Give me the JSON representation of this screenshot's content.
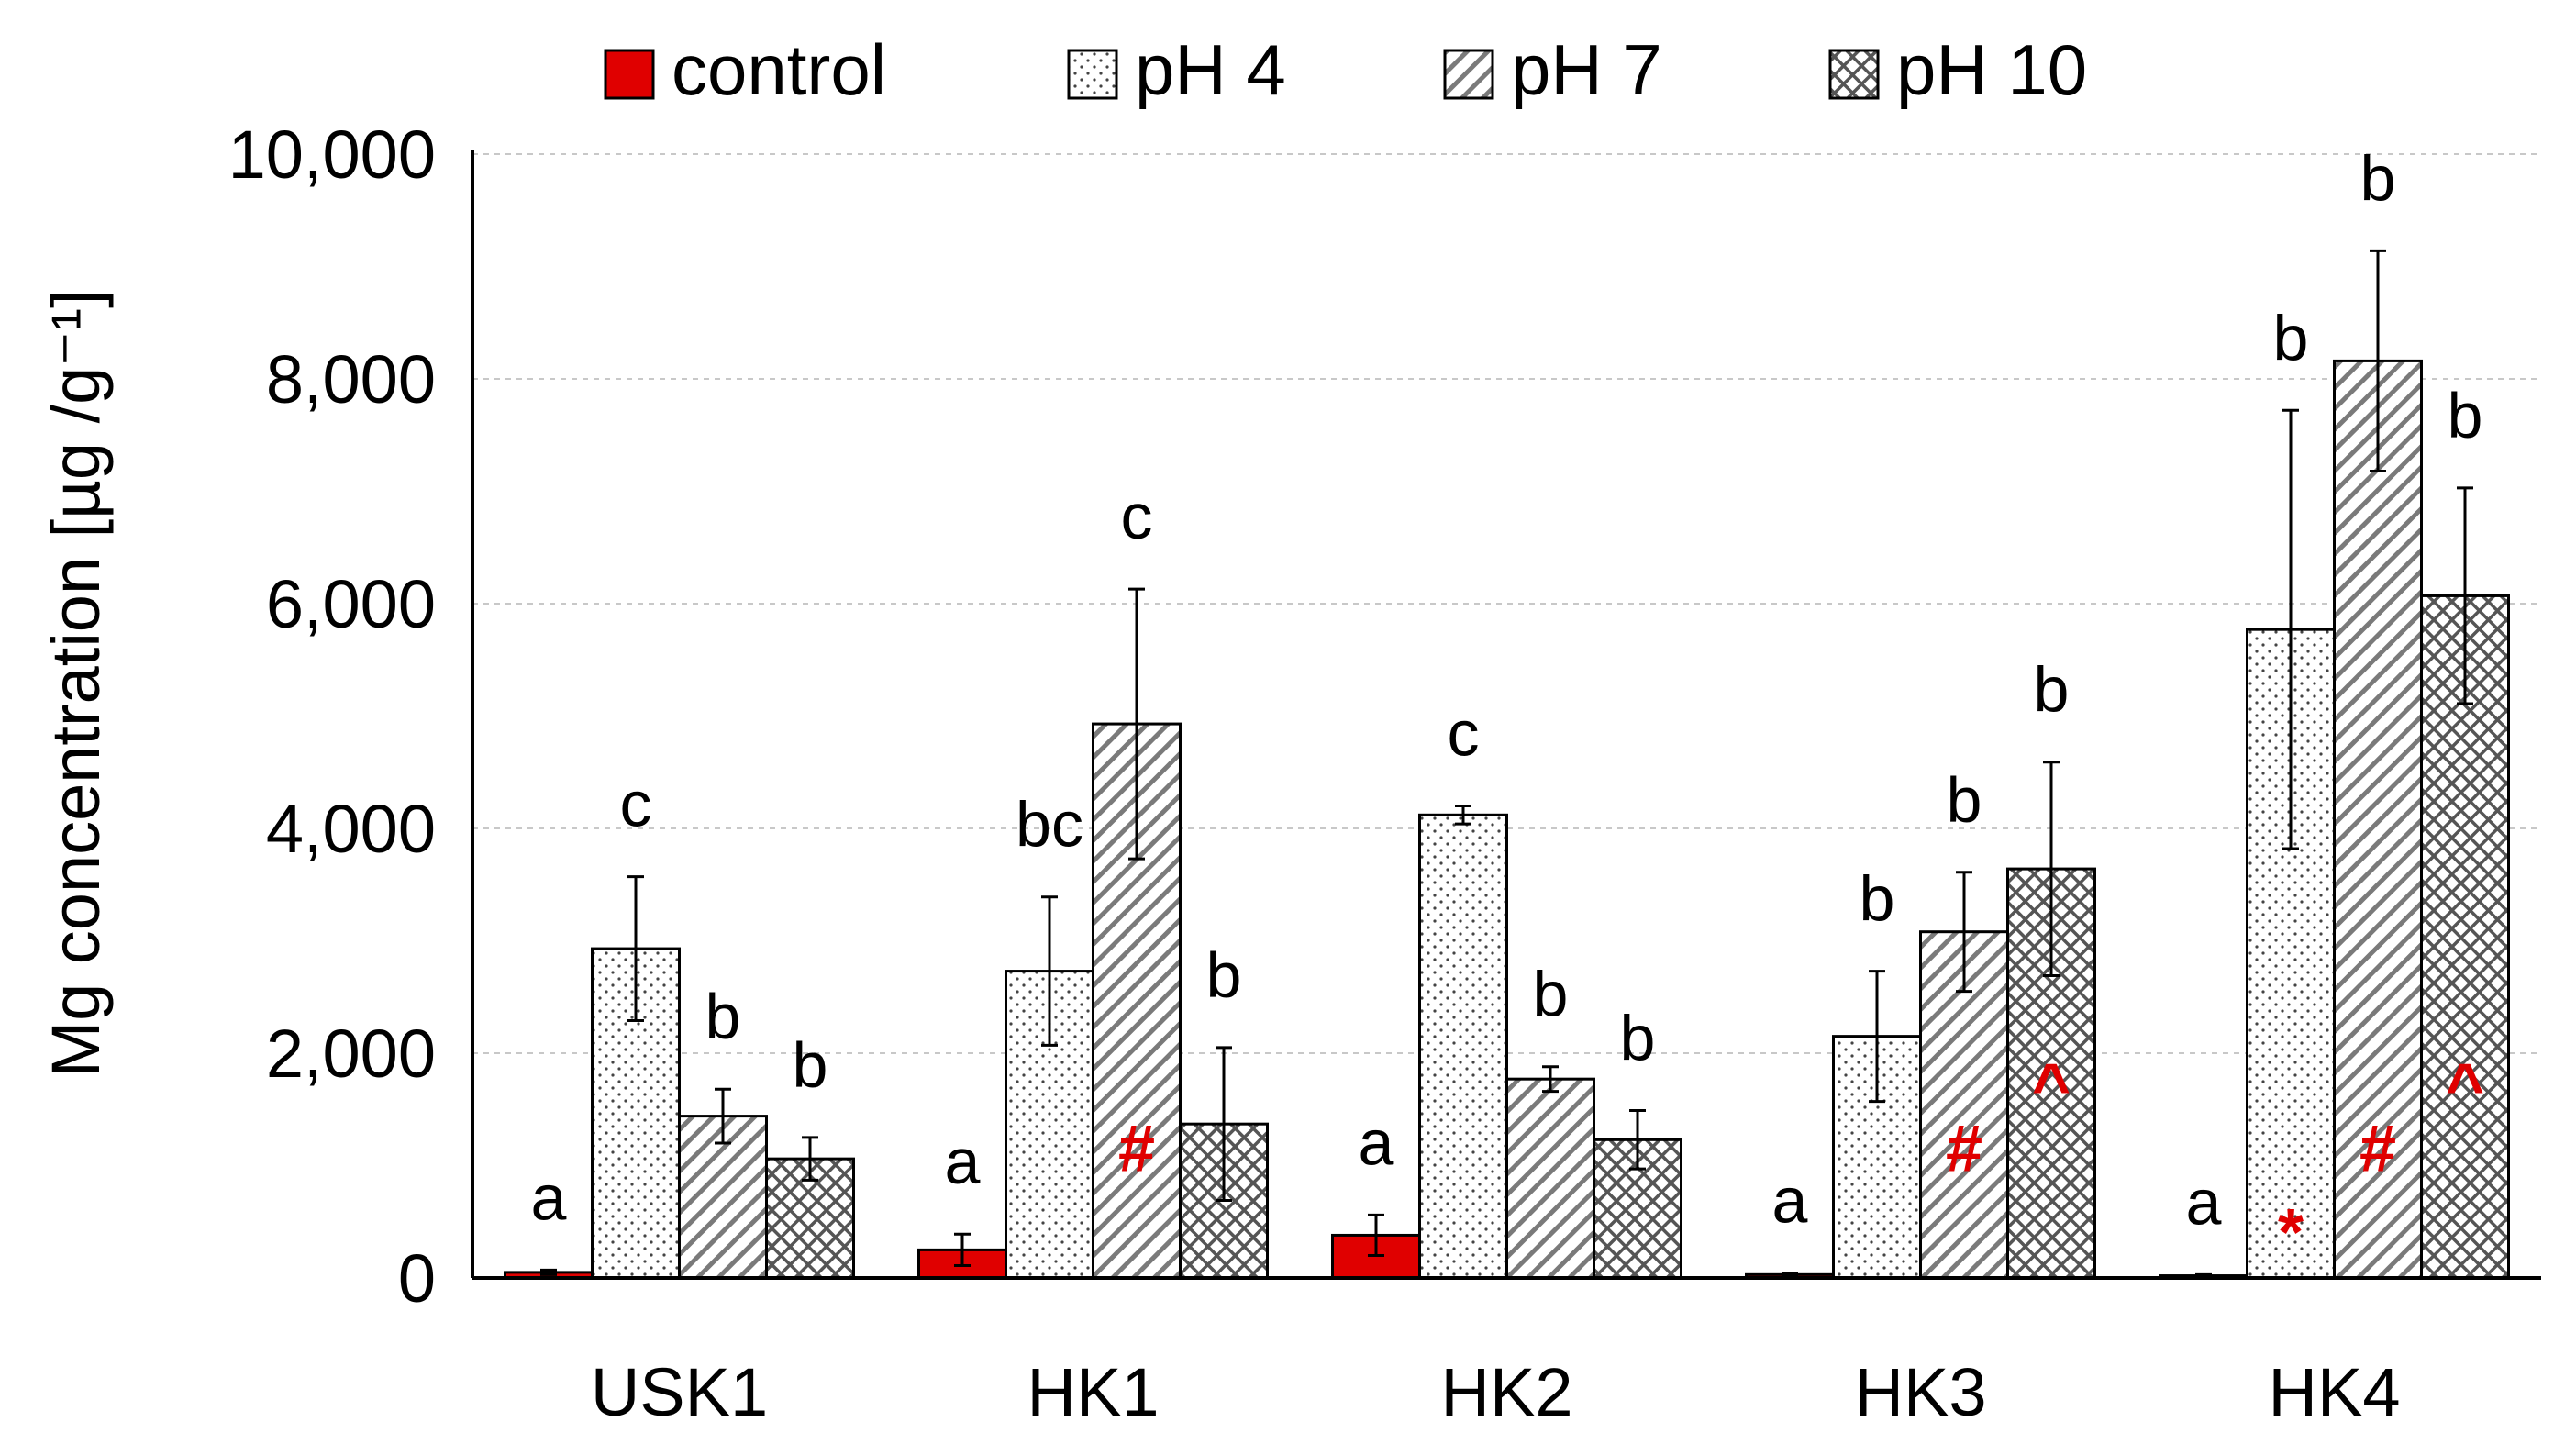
{
  "chart_data": {
    "type": "bar",
    "ylabel": "Mg concentration [µg /g⁻¹]",
    "ylim": [
      0,
      10000
    ],
    "yticks": [
      0,
      2000,
      4000,
      6000,
      8000,
      10000
    ],
    "ytick_labels": [
      "0",
      "2,000",
      "4,000",
      "6,000",
      "8,000",
      "10,000"
    ],
    "grid": "horizontal dashed",
    "legend_position": "top",
    "categories": [
      "USK1",
      "HK1",
      "HK2",
      "HK3",
      "HK4"
    ],
    "series": [
      {
        "name": "control",
        "pattern": "solid",
        "color": "#e00000",
        "values": [
          50,
          250,
          380,
          30,
          20
        ],
        "errors": [
          20,
          140,
          180,
          15,
          10
        ],
        "letters": [
          "a",
          "a",
          "a",
          "a",
          "a"
        ],
        "markers": [
          "",
          "",
          "",
          "",
          ""
        ]
      },
      {
        "name": "pH 4",
        "pattern": "dots",
        "color": "#ffffff",
        "values": [
          2930,
          2730,
          4120,
          2150,
          5770
        ],
        "errors": [
          640,
          660,
          80,
          580,
          1950
        ],
        "letters": [
          "c",
          "bc",
          "c",
          "b",
          "b"
        ],
        "markers": [
          "",
          "",
          "",
          "",
          "*"
        ]
      },
      {
        "name": "pH 7",
        "pattern": "diagonal",
        "color": "#ffffff",
        "values": [
          1440,
          4930,
          1770,
          3080,
          8160
        ],
        "errors": [
          240,
          1200,
          110,
          530,
          980
        ],
        "letters": [
          "b",
          "c",
          "b",
          "b",
          "b"
        ],
        "markers": [
          "",
          "#",
          "",
          "#",
          "#"
        ]
      },
      {
        "name": "pH 10",
        "pattern": "crosshatch",
        "color": "#ffffff",
        "values": [
          1060,
          1370,
          1230,
          3640,
          6070
        ],
        "errors": [
          190,
          680,
          260,
          950,
          960
        ],
        "letters": [
          "b",
          "b",
          "b",
          "b",
          "b"
        ],
        "markers": [
          "",
          "",
          "",
          "^",
          "^"
        ]
      }
    ]
  },
  "colors": {
    "axis": "#000000",
    "grid": "#c8c8c8",
    "marker": "#e00000"
  }
}
